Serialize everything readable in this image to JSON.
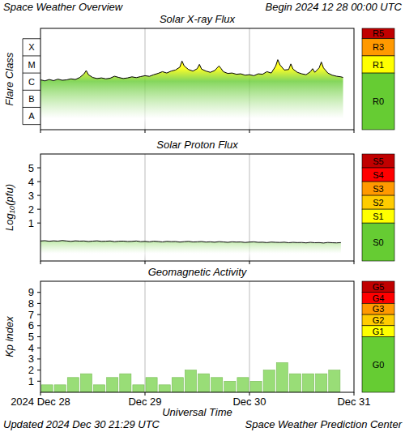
{
  "header": {
    "title": "Space Weather Overview",
    "begin": "Begin 2024 12 28 00:00 UTC"
  },
  "footer": {
    "updated": "Updated 2024 Dec 30 21:29 UTC",
    "source": "Space Weather Prediction Center"
  },
  "chart_data": [
    {
      "type": "line",
      "title": "Solar X-ray Flux",
      "ylabel": "Flare Class",
      "color": "#000000",
      "log": "y",
      "grid": true,
      "tick_labels": "y",
      "xlim": [
        0,
        72
      ],
      "xticks": [
        0,
        24,
        48,
        72
      ],
      "ylim": [
        5e-09,
        0.004
      ],
      "yticks": [
        {
          "value": 3.16e-08,
          "label": "A"
        },
        {
          "value": 3.16e-07,
          "label": "B"
        },
        {
          "value": 3.16e-06,
          "label": "C"
        },
        {
          "value": 3.16e-05,
          "label": "M"
        },
        {
          "value": 0.000316,
          "label": "X"
        }
      ],
      "x": [
        0,
        1,
        2,
        3,
        4,
        5,
        6,
        7,
        8,
        9,
        10,
        10.5,
        11,
        12,
        13,
        14,
        15,
        16,
        17,
        18,
        19,
        20,
        21,
        22,
        23,
        24,
        25,
        26,
        27,
        28,
        29,
        30,
        31,
        32,
        32.5,
        33,
        34,
        35,
        36,
        36.5,
        37,
        38,
        39,
        40,
        41,
        41.5,
        42,
        43,
        44,
        45,
        46,
        47,
        48,
        49,
        50,
        51,
        52,
        53,
        54,
        54.5,
        55,
        56,
        57,
        57.5,
        58,
        59,
        60,
        61,
        62,
        62.5,
        63,
        64,
        64.5,
        65,
        66,
        67,
        68,
        69,
        69.5
      ],
      "values": [
        4e-06,
        3.5e-06,
        4.2e-06,
        3.6e-06,
        4.4e-06,
        3.8e-06,
        4e-06,
        4.6e-06,
        4.2e-06,
        5.5e-06,
        9e-06,
        1.4e-05,
        8e-06,
        5.5e-06,
        4.8e-06,
        5.2e-06,
        4.6e-06,
        5e-06,
        6.5e-06,
        5.5e-06,
        4.8e-06,
        5.2e-06,
        6e-06,
        5.4e-06,
        6.2e-06,
        7e-06,
        6.4e-06,
        8e-06,
        9.5e-06,
        1.2e-05,
        1e-05,
        1.3e-05,
        1.5e-05,
        2.2e-05,
        5e-05,
        2.6e-05,
        1.6e-05,
        1.3e-05,
        1.8e-05,
        3.2e-05,
        1.7e-05,
        1.3e-05,
        1.1e-05,
        1.4e-05,
        2.6e-05,
        1.8e-05,
        1.2e-05,
        9.5e-06,
        1e-05,
        8.5e-06,
        9e-06,
        7.5e-06,
        8e-06,
        7e-06,
        9e-06,
        8.5e-06,
        1.2e-05,
        1e-05,
        2.5e-05,
        6e-05,
        3e-05,
        1.5e-05,
        1.6e-05,
        3.4e-05,
        1.7e-05,
        1.1e-05,
        9e-06,
        8e-06,
        1.2e-05,
        1.8e-05,
        1.1e-05,
        2e-05,
        4.4e-05,
        2e-05,
        1e-05,
        7.5e-06,
        6.5e-06,
        6e-06,
        5.5e-06
      ],
      "levels": [
        {
          "label": "R5",
          "color": "#c00000",
          "from": 0.001,
          "to": 0.004
        },
        {
          "label": "R3",
          "color": "#ff9900",
          "from": 0.0001,
          "to": 0.001
        },
        {
          "label": "R1",
          "color": "#ffff00",
          "from": 1e-05,
          "to": 0.0001
        },
        {
          "label": "R0",
          "color": "#66cc33",
          "from": 5e-09,
          "to": 1e-05
        }
      ]
    },
    {
      "type": "line",
      "title": "Solar Proton Flux",
      "ylabel": "Log₁₀(pfu)",
      "color": "#000000",
      "grid": true,
      "tick_labels": "y",
      "xlim": [
        0,
        72
      ],
      "xticks": [
        0,
        24,
        48,
        72
      ],
      "ylim": [
        -1.75,
        6
      ],
      "yticks": [
        1,
        2,
        3,
        4,
        5
      ],
      "x": [
        0,
        1,
        2,
        3,
        4,
        5,
        6,
        7,
        8,
        9,
        10,
        11,
        12,
        13,
        14,
        15,
        16,
        17,
        18,
        19,
        20,
        21,
        22,
        23,
        24,
        25,
        26,
        27,
        28,
        29,
        30,
        31,
        32,
        33,
        34,
        35,
        36,
        37,
        38,
        39,
        40,
        41,
        42,
        43,
        44,
        45,
        46,
        47,
        48,
        49,
        50,
        51,
        52,
        53,
        54,
        55,
        56,
        57,
        58,
        59,
        60,
        61,
        62,
        63,
        64,
        65,
        66,
        67,
        68,
        69
      ],
      "values": [
        -0.3,
        -0.28,
        -0.32,
        -0.29,
        -0.31,
        -0.27,
        -0.3,
        -0.33,
        -0.29,
        -0.31,
        -0.3,
        -0.34,
        -0.31,
        -0.29,
        -0.33,
        -0.32,
        -0.3,
        -0.35,
        -0.32,
        -0.31,
        -0.34,
        -0.33,
        -0.3,
        -0.35,
        -0.33,
        -0.36,
        -0.32,
        -0.34,
        -0.37,
        -0.33,
        -0.35,
        -0.34,
        -0.38,
        -0.35,
        -0.33,
        -0.37,
        -0.36,
        -0.34,
        -0.38,
        -0.36,
        -0.39,
        -0.35,
        -0.37,
        -0.4,
        -0.36,
        -0.38,
        -0.37,
        -0.41,
        -0.38,
        -0.36,
        -0.4,
        -0.39,
        -0.42,
        -0.38,
        -0.4,
        -0.41,
        -0.39,
        -0.43,
        -0.4,
        -0.42,
        -0.41,
        -0.44,
        -0.4,
        -0.43,
        -0.42,
        -0.45,
        -0.41,
        -0.43,
        -0.44,
        -0.42
      ],
      "levels": [
        {
          "label": "S5",
          "color": "#c00000",
          "from": 5,
          "to": 6
        },
        {
          "label": "S4",
          "color": "#ff0000",
          "from": 4,
          "to": 5
        },
        {
          "label": "S3",
          "color": "#ff9900",
          "from": 3,
          "to": 4
        },
        {
          "label": "S2",
          "color": "#ffcc00",
          "from": 2,
          "to": 3
        },
        {
          "label": "S1",
          "color": "#ffff00",
          "from": 1,
          "to": 2
        },
        {
          "label": "S0",
          "color": "#66cc33",
          "from": -1.75,
          "to": 1
        }
      ]
    },
    {
      "type": "bar",
      "title": "Geomagnetic Activity",
      "ylabel": "Kp index",
      "xlabel": "Universal Time",
      "color": "#99dd77",
      "grid": true,
      "xlim": [
        0,
        72
      ],
      "xticks": [
        {
          "value": 0,
          "label": "2024 Dec 28"
        },
        {
          "value": 24,
          "label": "Dec 29"
        },
        {
          "value": 48,
          "label": "Dec 30"
        },
        {
          "value": 72,
          "label": "Dec 31"
        }
      ],
      "ylim": [
        0,
        10
      ],
      "yticks": [
        1,
        2,
        3,
        4,
        5,
        6,
        7,
        8,
        9
      ],
      "x": [
        1.5,
        4.5,
        7.5,
        10.5,
        13.5,
        16.5,
        19.5,
        22.5,
        25.5,
        28.5,
        31.5,
        34.5,
        37.5,
        40.5,
        43.5,
        46.5,
        49.5,
        52.5,
        55.5,
        58.5,
        61.5,
        64.5,
        67.5
      ],
      "values": [
        0.67,
        0.67,
        1.33,
        1.67,
        0.67,
        1.33,
        1.67,
        0.67,
        1.33,
        0.67,
        1.33,
        2,
        1.67,
        1.33,
        1,
        1.33,
        1,
        2,
        2.67,
        1.67,
        1.67,
        1.67,
        2
      ],
      "levels": [
        {
          "label": "G5",
          "color": "#c00000",
          "from": 9,
          "to": 10
        },
        {
          "label": "G4",
          "color": "#ff0000",
          "from": 8,
          "to": 9
        },
        {
          "label": "G3",
          "color": "#ff9900",
          "from": 7,
          "to": 8
        },
        {
          "label": "G2",
          "color": "#ffcc00",
          "from": 6,
          "to": 7
        },
        {
          "label": "G1",
          "color": "#ffff00",
          "from": 5,
          "to": 6
        },
        {
          "label": "G0",
          "color": "#66cc33",
          "from": 0,
          "to": 5
        }
      ]
    }
  ]
}
